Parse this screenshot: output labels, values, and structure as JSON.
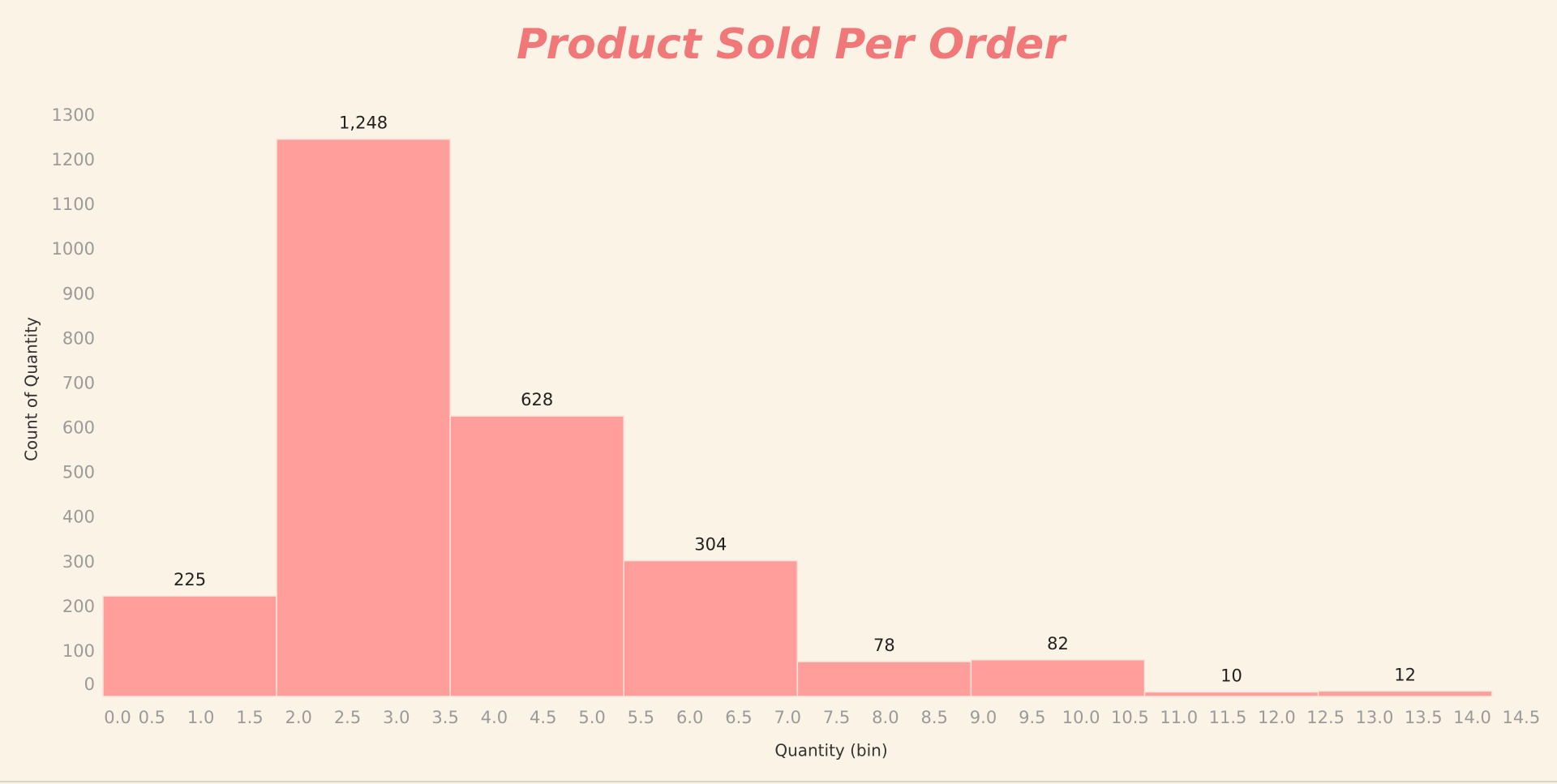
{
  "chart_data": {
    "type": "histogram",
    "title": "Product Sold Per Order",
    "x_label": "Quantity (bin)",
    "y_label": "Count of Quantity",
    "bins": [
      0,
      1.775,
      3.55,
      5.325,
      7.1,
      8.875,
      10.65,
      12.425,
      14.2
    ],
    "values": [
      225,
      1248,
      628,
      304,
      78,
      82,
      10,
      12
    ],
    "value_labels": [
      "225",
      "1,248",
      "628",
      "304",
      "78",
      "82",
      "10",
      "12"
    ],
    "color": "#ff9e9b",
    "xlim": [
      0,
      14.75
    ],
    "xticks": [
      {
        "value": 0,
        "label": "0.0"
      },
      0.5,
      {
        "value": 1,
        "label": "1.0"
      },
      1.5,
      {
        "value": 2,
        "label": "2.0"
      },
      2.5,
      {
        "value": 3,
        "label": "3.0"
      },
      3.5,
      {
        "value": 4,
        "label": "4.0"
      },
      4.5,
      {
        "value": 5,
        "label": "5.0"
      },
      5.5,
      {
        "value": 6,
        "label": "6.0"
      },
      6.5,
      {
        "value": 7,
        "label": "7.0"
      },
      7.5,
      {
        "value": 8,
        "label": "8.0"
      },
      8.5,
      {
        "value": 9,
        "label": "9.0"
      },
      9.5,
      {
        "value": 10,
        "label": "10.0"
      },
      10.5,
      {
        "value": 11,
        "label": "11.0"
      },
      11.5,
      {
        "value": 12,
        "label": "12.0"
      },
      12.5,
      {
        "value": 13,
        "label": "13.0"
      },
      13.5,
      {
        "value": 14,
        "label": "14.0"
      },
      14.5
    ],
    "ylim": [
      0,
      1300
    ],
    "yticks": [
      0,
      100,
      200,
      300,
      400,
      500,
      600,
      700,
      800,
      900,
      1000,
      1100,
      1200,
      1300
    ],
    "grid": false
  }
}
